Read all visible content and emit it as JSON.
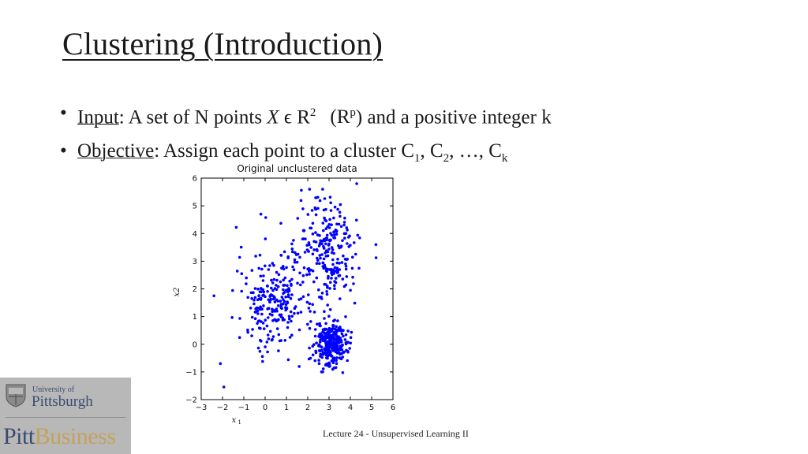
{
  "slide": {
    "title": "Clustering (Introduction)",
    "bullets": [
      {
        "keyword": "Input",
        "sep": ": A set of N points ",
        "var": "X",
        "mid": " ϵ R",
        "sup": "2",
        "rp_base": "(R",
        "rp_sup": "p",
        "tail": ") and a positive integer k"
      },
      {
        "keyword": "Objective",
        "text": ": Assign each point to a cluster C",
        "sub1": "1",
        "c2": ", C",
        "sub2": "2",
        "c3": ", …, C",
        "subk": "k"
      }
    ],
    "footer": "Lecture 24 - Unsupervised Learning II"
  },
  "logo": {
    "small": "University of",
    "big": "Pittsburgh",
    "brand_left": "Pitt",
    "brand_right": "Business"
  },
  "chart_data": {
    "type": "scatter",
    "title": "Original unclustered data",
    "xlabel": "x1",
    "ylabel": "x2",
    "xlim": [
      -3,
      6
    ],
    "ylim": [
      -2,
      6
    ],
    "xticks": [
      -3,
      -2,
      -1,
      0,
      1,
      2,
      3,
      4,
      5,
      6
    ],
    "yticks": [
      -2,
      -1,
      0,
      1,
      2,
      3,
      4,
      5,
      6
    ],
    "grid": false,
    "marker_color": "#0000ff",
    "clusters": [
      {
        "center": [
          0.5,
          1.6
        ],
        "spread": [
          0.9,
          0.9
        ],
        "n": 260
      },
      {
        "center": [
          3.0,
          3.3
        ],
        "spread": [
          0.7,
          1.0
        ],
        "n": 240
      },
      {
        "center": [
          3.1,
          0.05
        ],
        "spread": [
          0.35,
          0.4
        ],
        "n": 300
      }
    ],
    "points": [
      [
        -2.4,
        1.75
      ],
      [
        -0.2,
        4.7
      ],
      [
        4.3,
        5.8
      ],
      [
        2.7,
        5.6
      ],
      [
        -2.1,
        -0.7
      ],
      [
        -1.1,
        2.55
      ],
      [
        5.2,
        3.6
      ],
      [
        1.6,
        -0.8
      ]
    ]
  }
}
